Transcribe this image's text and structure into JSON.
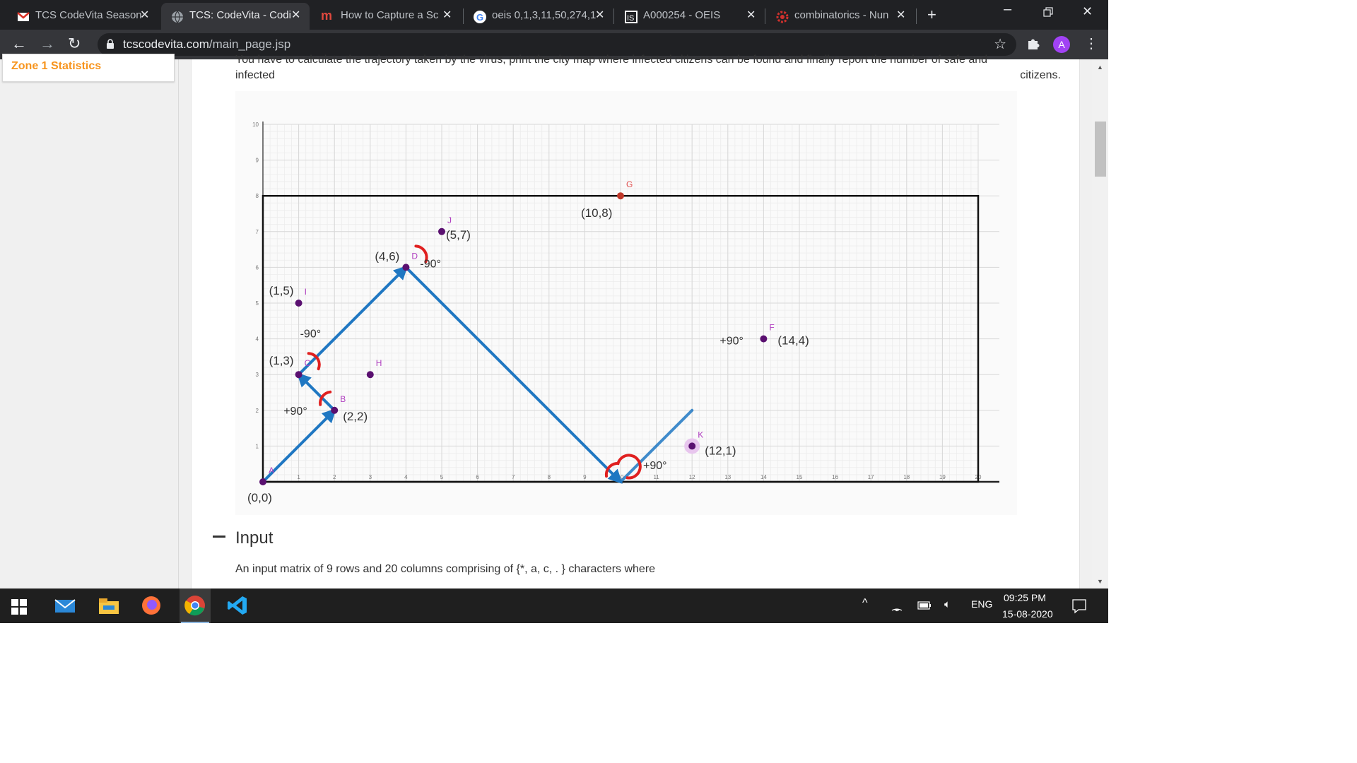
{
  "browser": {
    "tabs": [
      {
        "title": "TCS CodeVita Season",
        "icon": "gmail-icon",
        "active": false
      },
      {
        "title": "TCS: CodeVita - Codi",
        "icon": "globe-icon",
        "active": true
      },
      {
        "title": "How to Capture a Sc",
        "icon": "m-icon",
        "active": false
      },
      {
        "title": "oeis 0,1,3,11,50,274,1",
        "icon": "google-icon",
        "active": false
      },
      {
        "title": "A000254 - OEIS",
        "icon": "oeis-icon",
        "active": false
      },
      {
        "title": "combinatorics - Nun",
        "icon": "mathse-icon",
        "active": false
      }
    ],
    "url_host": "tcscodevita.com",
    "url_path": "/main_page.jsp",
    "profile_initial": "A"
  },
  "sidebar": {
    "zone_link": "Zone 1 Statistics"
  },
  "content": {
    "intro_line1": "You have to calculate the trajectory taken by the virus, print the city map where infected citizens can be found and finally report the number of safe and",
    "intro_line2": "infected",
    "intro_line2_right": "citizens."
  },
  "figure": {
    "y_ticks": [
      "1",
      "2",
      "3",
      "4",
      "5",
      "6",
      "7",
      "8",
      "9",
      "10"
    ],
    "x_ticks": [
      "1",
      "2",
      "3",
      "4",
      "5",
      "6",
      "7",
      "8",
      "9",
      "10",
      "11",
      "12",
      "13",
      "14",
      "15",
      "16",
      "17",
      "18",
      "19",
      "20"
    ],
    "points": [
      {
        "letter": "A",
        "coord_label": "(0,0)",
        "x": 0,
        "y": 0
      },
      {
        "letter": "B",
        "coord_label": "(2,2)",
        "x": 2,
        "y": 2
      },
      {
        "letter": "C",
        "coord_label": "(1,3)",
        "x": 1,
        "y": 3
      },
      {
        "letter": "D",
        "coord_label": "(4,6)",
        "x": 4,
        "y": 6
      },
      {
        "letter": "F",
        "coord_label": "(14,4)",
        "x": 14,
        "y": 4
      },
      {
        "letter": "G",
        "coord_label": "(10,8)",
        "x": 10,
        "y": 8
      },
      {
        "letter": "H",
        "coord_label": "",
        "x": 3,
        "y": 3
      },
      {
        "letter": "I",
        "coord_label": "(1,5)",
        "x": 1,
        "y": 5
      },
      {
        "letter": "J",
        "coord_label": "(5,7)",
        "x": 5,
        "y": 7
      },
      {
        "letter": "K",
        "coord_label": "(12,1)",
        "x": 12,
        "y": 1
      }
    ],
    "angle_labels": [
      "+90°",
      "-90°",
      "-90°",
      "+90°",
      "+90°"
    ],
    "trajectory": [
      [
        0,
        0
      ],
      [
        2,
        2
      ],
      [
        1,
        3
      ],
      [
        4,
        6
      ],
      [
        10,
        0
      ],
      [
        12,
        2
      ]
    ],
    "colors": {
      "trajectory": "#1f77c2",
      "rotation": "#e02020",
      "point": "#5a1070",
      "letter": "#b040c0",
      "g_point": "#c0392b"
    }
  },
  "section": {
    "title": "Input",
    "body": "An input matrix of 9 rows and 20 columns comprising of {*, a, c, . } characters where"
  },
  "taskbar": {
    "time": "09:25 PM",
    "date": "15-08-2020",
    "lang": "ENG"
  }
}
